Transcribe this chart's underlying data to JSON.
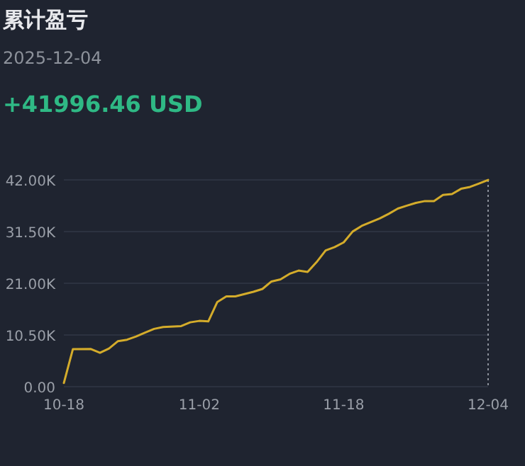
{
  "chart_data": {
    "type": "line",
    "title": "累计盈亏",
    "subtitle": "2025-12-04",
    "annotations": [
      "+41996.46 USD"
    ],
    "x": [
      "2025-10-18",
      "2025-10-19",
      "2025-10-21",
      "2025-10-22",
      "2025-10-23",
      "2025-10-24",
      "2025-10-25",
      "2025-10-26",
      "2025-10-27",
      "2025-10-28",
      "2025-10-29",
      "2025-10-31",
      "2025-11-01",
      "2025-11-02",
      "2025-11-03",
      "2025-11-04",
      "2025-11-05",
      "2025-11-06",
      "2025-11-07",
      "2025-11-08",
      "2025-11-09",
      "2025-11-10",
      "2025-11-11",
      "2025-11-12",
      "2025-11-13",
      "2025-11-14",
      "2025-11-15",
      "2025-11-16",
      "2025-11-17",
      "2025-11-18",
      "2025-11-19",
      "2025-11-20",
      "2025-11-21",
      "2025-11-22",
      "2025-11-23",
      "2025-11-24",
      "2025-11-25",
      "2025-11-26",
      "2025-11-27",
      "2025-11-28",
      "2025-11-29",
      "2025-11-30",
      "2025-12-01",
      "2025-12-02",
      "2025-12-03",
      "2025-12-04"
    ],
    "series": [
      {
        "color": "#d4ac2b",
        "values": [
          750,
          7620,
          7650,
          6880,
          7760,
          9250,
          9540,
          10200,
          10970,
          11740,
          12110,
          12310,
          13070,
          13360,
          13260,
          17190,
          18330,
          18330,
          18800,
          19280,
          19850,
          21370,
          21800,
          22920,
          23580,
          23290,
          25300,
          27680,
          28360,
          29310,
          31520,
          32660,
          33410,
          34180,
          35120,
          36180,
          36760,
          37330,
          37700,
          37700,
          38960,
          39130,
          40190,
          40570,
          41260,
          41996.46
        ]
      }
    ],
    "xlim": [
      "2025-10-18",
      "2025-12-04"
    ],
    "xticks": [
      {
        "value": "2025-10-18",
        "label": "10-18"
      },
      {
        "value": "2025-11-02",
        "label": "11-02"
      },
      {
        "value": "2025-11-18",
        "label": "11-18"
      },
      {
        "value": "2025-12-04",
        "label": "12-04"
      }
    ],
    "ylim": [
      0,
      42000
    ],
    "yticks": [
      {
        "value": 0,
        "label": "0.00"
      },
      {
        "value": 10500,
        "label": "10.50K"
      },
      {
        "value": 21000,
        "label": "21.00K"
      },
      {
        "value": 31500,
        "label": "31.50K"
      },
      {
        "value": 42000,
        "label": "42.00K"
      }
    ],
    "grid": "y",
    "ref_lines": [
      {
        "axis": "x",
        "value": "2025-12-04",
        "color": "#8a8f99",
        "line_style": "dotted"
      }
    ]
  }
}
